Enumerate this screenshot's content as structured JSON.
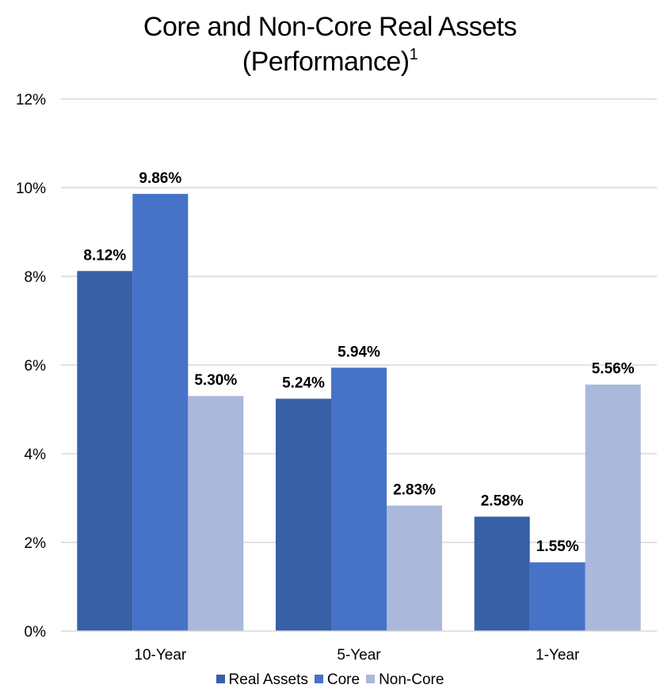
{
  "chart_data": {
    "type": "bar",
    "title": "Core and Non-Core Real Assets",
    "title_line2": "(Performance)",
    "title_superscript": "1",
    "categories": [
      "10-Year",
      "5-Year",
      "1-Year"
    ],
    "series": [
      {
        "name": "Real Assets",
        "color": "#3760A7",
        "values": [
          8.12,
          5.24,
          2.58
        ],
        "labels": [
          "8.12%",
          "5.24%",
          "2.58%"
        ]
      },
      {
        "name": "Core",
        "color": "#4673C8",
        "values": [
          9.86,
          5.94,
          1.55
        ],
        "labels": [
          "9.86%",
          "5.94%",
          "1.55%"
        ]
      },
      {
        "name": "Non-Core",
        "color": "#A9B8DB",
        "values": [
          5.3,
          2.83,
          5.56
        ],
        "labels": [
          "5.30%",
          "2.83%",
          "5.56%"
        ]
      }
    ],
    "ylim": [
      0,
      12
    ],
    "yticks": [
      0,
      2,
      4,
      6,
      8,
      10,
      12
    ],
    "ytick_labels": [
      "0%",
      "2%",
      "4%",
      "6%",
      "8%",
      "10%",
      "12%"
    ],
    "grid": true,
    "legend": "bottom"
  }
}
